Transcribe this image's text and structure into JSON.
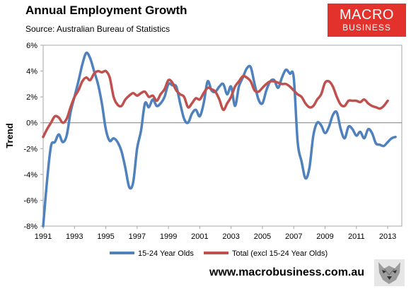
{
  "header": {
    "title": "Annual Employment Growth",
    "subtitle": "Source: Australian Bureau of Statistics"
  },
  "logo": {
    "line1": "MACRO",
    "line2": "BUSINESS",
    "color": "#e2322b"
  },
  "footer": {
    "website": "www.macrobusiness.com.au",
    "mascot_icon": "wolf-head-icon"
  },
  "chart_data": {
    "type": "line",
    "title": "Annual Employment Growth",
    "subtitle": "Source: Australian Bureau of Statistics",
    "xlabel": "",
    "ylabel": "Trend",
    "xlim": [
      1991,
      2013.9
    ],
    "ylim": [
      -8,
      6
    ],
    "x_ticks": [
      1991,
      1993,
      1995,
      1997,
      1999,
      2001,
      2003,
      2005,
      2007,
      2009,
      2011,
      2013
    ],
    "x_tick_labels": [
      "1991",
      "1993",
      "1995",
      "1997",
      "1999",
      "2001",
      "2003",
      "2005",
      "2007",
      "2009",
      "2011",
      "2013"
    ],
    "y_ticks": [
      -8,
      -6,
      -4,
      -2,
      0,
      2,
      4,
      6
    ],
    "y_tick_labels": [
      "-8%",
      "-6%",
      "-4%",
      "-2%",
      "0%",
      "2%",
      "4%",
      "6%"
    ],
    "grid": false,
    "legend_position": "bottom",
    "background": "#ffffff",
    "series": [
      {
        "name": "15-24 Year Olds",
        "color": "#4f81bd",
        "points": [
          [
            1991.0,
            -8.0
          ],
          [
            1991.25,
            -4.5
          ],
          [
            1991.5,
            -1.8
          ],
          [
            1991.75,
            -1.5
          ],
          [
            1992.0,
            -0.9
          ],
          [
            1992.25,
            -1.5
          ],
          [
            1992.5,
            -1.0
          ],
          [
            1992.75,
            0.8
          ],
          [
            1993.0,
            2.0
          ],
          [
            1993.25,
            3.2
          ],
          [
            1993.5,
            4.5
          ],
          [
            1993.75,
            5.4
          ],
          [
            1994.0,
            5.0
          ],
          [
            1994.25,
            4.0
          ],
          [
            1994.5,
            3.0
          ],
          [
            1994.75,
            1.5
          ],
          [
            1995.0,
            -0.5
          ],
          [
            1995.25,
            -1.4
          ],
          [
            1995.5,
            -1.2
          ],
          [
            1995.75,
            -1.5
          ],
          [
            1996.0,
            -2.2
          ],
          [
            1996.25,
            -3.5
          ],
          [
            1996.5,
            -5.0
          ],
          [
            1996.75,
            -4.6
          ],
          [
            1997.0,
            -2.0
          ],
          [
            1997.25,
            -0.6
          ],
          [
            1997.5,
            1.5
          ],
          [
            1997.75,
            1.2
          ],
          [
            1998.0,
            1.8
          ],
          [
            1998.25,
            1.3
          ],
          [
            1998.5,
            1.5
          ],
          [
            1998.75,
            2.0
          ],
          [
            1999.0,
            3.0
          ],
          [
            1999.25,
            2.9
          ],
          [
            1999.5,
            2.8
          ],
          [
            1999.75,
            1.5
          ],
          [
            2000.0,
            0.3
          ],
          [
            2000.25,
            0.0
          ],
          [
            2000.5,
            0.7
          ],
          [
            2000.75,
            1.0
          ],
          [
            2001.0,
            0.5
          ],
          [
            2001.25,
            1.5
          ],
          [
            2001.5,
            3.2
          ],
          [
            2001.75,
            2.5
          ],
          [
            2002.0,
            2.4
          ],
          [
            2002.25,
            2.8
          ],
          [
            2002.5,
            3.0
          ],
          [
            2002.75,
            2.2
          ],
          [
            2003.0,
            2.8
          ],
          [
            2003.25,
            1.3
          ],
          [
            2003.5,
            2.8
          ],
          [
            2003.75,
            3.5
          ],
          [
            2004.0,
            4.2
          ],
          [
            2004.25,
            4.3
          ],
          [
            2004.5,
            3.0
          ],
          [
            2004.75,
            1.8
          ],
          [
            2005.0,
            1.5
          ],
          [
            2005.25,
            2.5
          ],
          [
            2005.5,
            3.2
          ],
          [
            2005.75,
            3.3
          ],
          [
            2006.0,
            2.7
          ],
          [
            2006.25,
            3.5
          ],
          [
            2006.5,
            4.1
          ],
          [
            2006.75,
            3.8
          ],
          [
            2007.0,
            3.5
          ],
          [
            2007.25,
            -1.5
          ],
          [
            2007.5,
            -3.0
          ],
          [
            2007.75,
            -4.3
          ],
          [
            2008.0,
            -3.5
          ],
          [
            2008.25,
            -1.0
          ],
          [
            2008.5,
            0.0
          ],
          [
            2008.75,
            -0.2
          ],
          [
            2009.0,
            -0.8
          ],
          [
            2009.25,
            -0.3
          ],
          [
            2009.5,
            0.6
          ],
          [
            2009.75,
            0.8
          ],
          [
            2010.0,
            -0.5
          ],
          [
            2010.25,
            -1.2
          ],
          [
            2010.5,
            -0.3
          ],
          [
            2010.75,
            -0.5
          ],
          [
            2011.0,
            -1.0
          ],
          [
            2011.25,
            -0.7
          ],
          [
            2011.5,
            -1.2
          ],
          [
            2011.75,
            -0.5
          ],
          [
            2012.0,
            -0.8
          ],
          [
            2012.25,
            -1.6
          ],
          [
            2012.5,
            -1.7
          ],
          [
            2012.75,
            -1.8
          ],
          [
            2013.0,
            -1.5
          ],
          [
            2013.25,
            -1.2
          ],
          [
            2013.5,
            -1.1
          ]
        ]
      },
      {
        "name": "Total (excl 15-24 Year Olds)",
        "color": "#c0504d",
        "points": [
          [
            1991.0,
            -1.1
          ],
          [
            1991.25,
            -0.5
          ],
          [
            1991.5,
            0.0
          ],
          [
            1991.75,
            0.5
          ],
          [
            1992.0,
            0.4
          ],
          [
            1992.25,
            0.0
          ],
          [
            1992.5,
            0.3
          ],
          [
            1992.75,
            1.2
          ],
          [
            1993.0,
            2.0
          ],
          [
            1993.25,
            2.5
          ],
          [
            1993.5,
            3.2
          ],
          [
            1993.75,
            3.5
          ],
          [
            1994.0,
            3.3
          ],
          [
            1994.25,
            3.8
          ],
          [
            1994.5,
            4.0
          ],
          [
            1994.75,
            3.9
          ],
          [
            1995.0,
            4.0
          ],
          [
            1995.25,
            3.5
          ],
          [
            1995.5,
            2.0
          ],
          [
            1995.75,
            1.4
          ],
          [
            1996.0,
            1.3
          ],
          [
            1996.25,
            1.8
          ],
          [
            1996.5,
            2.1
          ],
          [
            1996.75,
            2.3
          ],
          [
            1997.0,
            2.1
          ],
          [
            1997.25,
            2.3
          ],
          [
            1997.5,
            2.4
          ],
          [
            1997.75,
            2.0
          ],
          [
            1998.0,
            2.1
          ],
          [
            1998.25,
            1.7
          ],
          [
            1998.5,
            2.2
          ],
          [
            1998.75,
            2.6
          ],
          [
            1999.0,
            3.3
          ],
          [
            1999.25,
            3.1
          ],
          [
            1999.5,
            2.5
          ],
          [
            1999.75,
            2.2
          ],
          [
            2000.0,
            2.0
          ],
          [
            2000.25,
            1.2
          ],
          [
            2000.5,
            1.5
          ],
          [
            2000.75,
            1.9
          ],
          [
            2001.0,
            1.8
          ],
          [
            2001.25,
            2.3
          ],
          [
            2001.5,
            2.7
          ],
          [
            2001.75,
            2.6
          ],
          [
            2002.0,
            2.4
          ],
          [
            2002.25,
            1.8
          ],
          [
            2002.5,
            1.0
          ],
          [
            2002.75,
            1.5
          ],
          [
            2003.0,
            2.0
          ],
          [
            2003.25,
            2.8
          ],
          [
            2003.5,
            3.2
          ],
          [
            2003.75,
            3.6
          ],
          [
            2004.0,
            3.5
          ],
          [
            2004.25,
            3.2
          ],
          [
            2004.5,
            2.5
          ],
          [
            2004.75,
            2.4
          ],
          [
            2005.0,
            2.7
          ],
          [
            2005.25,
            3.0
          ],
          [
            2005.5,
            3.2
          ],
          [
            2005.75,
            3.2
          ],
          [
            2006.0,
            3.1
          ],
          [
            2006.25,
            3.0
          ],
          [
            2006.5,
            3.0
          ],
          [
            2006.75,
            2.8
          ],
          [
            2007.0,
            2.5
          ],
          [
            2007.25,
            2.2
          ],
          [
            2007.5,
            2.0
          ],
          [
            2007.75,
            1.5
          ],
          [
            2008.0,
            1.2
          ],
          [
            2008.25,
            1.3
          ],
          [
            2008.5,
            1.8
          ],
          [
            2008.75,
            2.2
          ],
          [
            2009.0,
            3.1
          ],
          [
            2009.25,
            3.2
          ],
          [
            2009.5,
            2.8
          ],
          [
            2009.75,
            2.0
          ],
          [
            2010.0,
            1.4
          ],
          [
            2010.25,
            1.3
          ],
          [
            2010.5,
            1.7
          ],
          [
            2010.75,
            1.7
          ],
          [
            2011.0,
            1.7
          ],
          [
            2011.25,
            1.6
          ],
          [
            2011.5,
            1.8
          ],
          [
            2011.75,
            1.5
          ],
          [
            2012.0,
            1.3
          ],
          [
            2012.25,
            1.2
          ],
          [
            2012.5,
            1.1
          ],
          [
            2012.75,
            1.3
          ],
          [
            2013.0,
            1.7
          ]
        ]
      }
    ]
  }
}
